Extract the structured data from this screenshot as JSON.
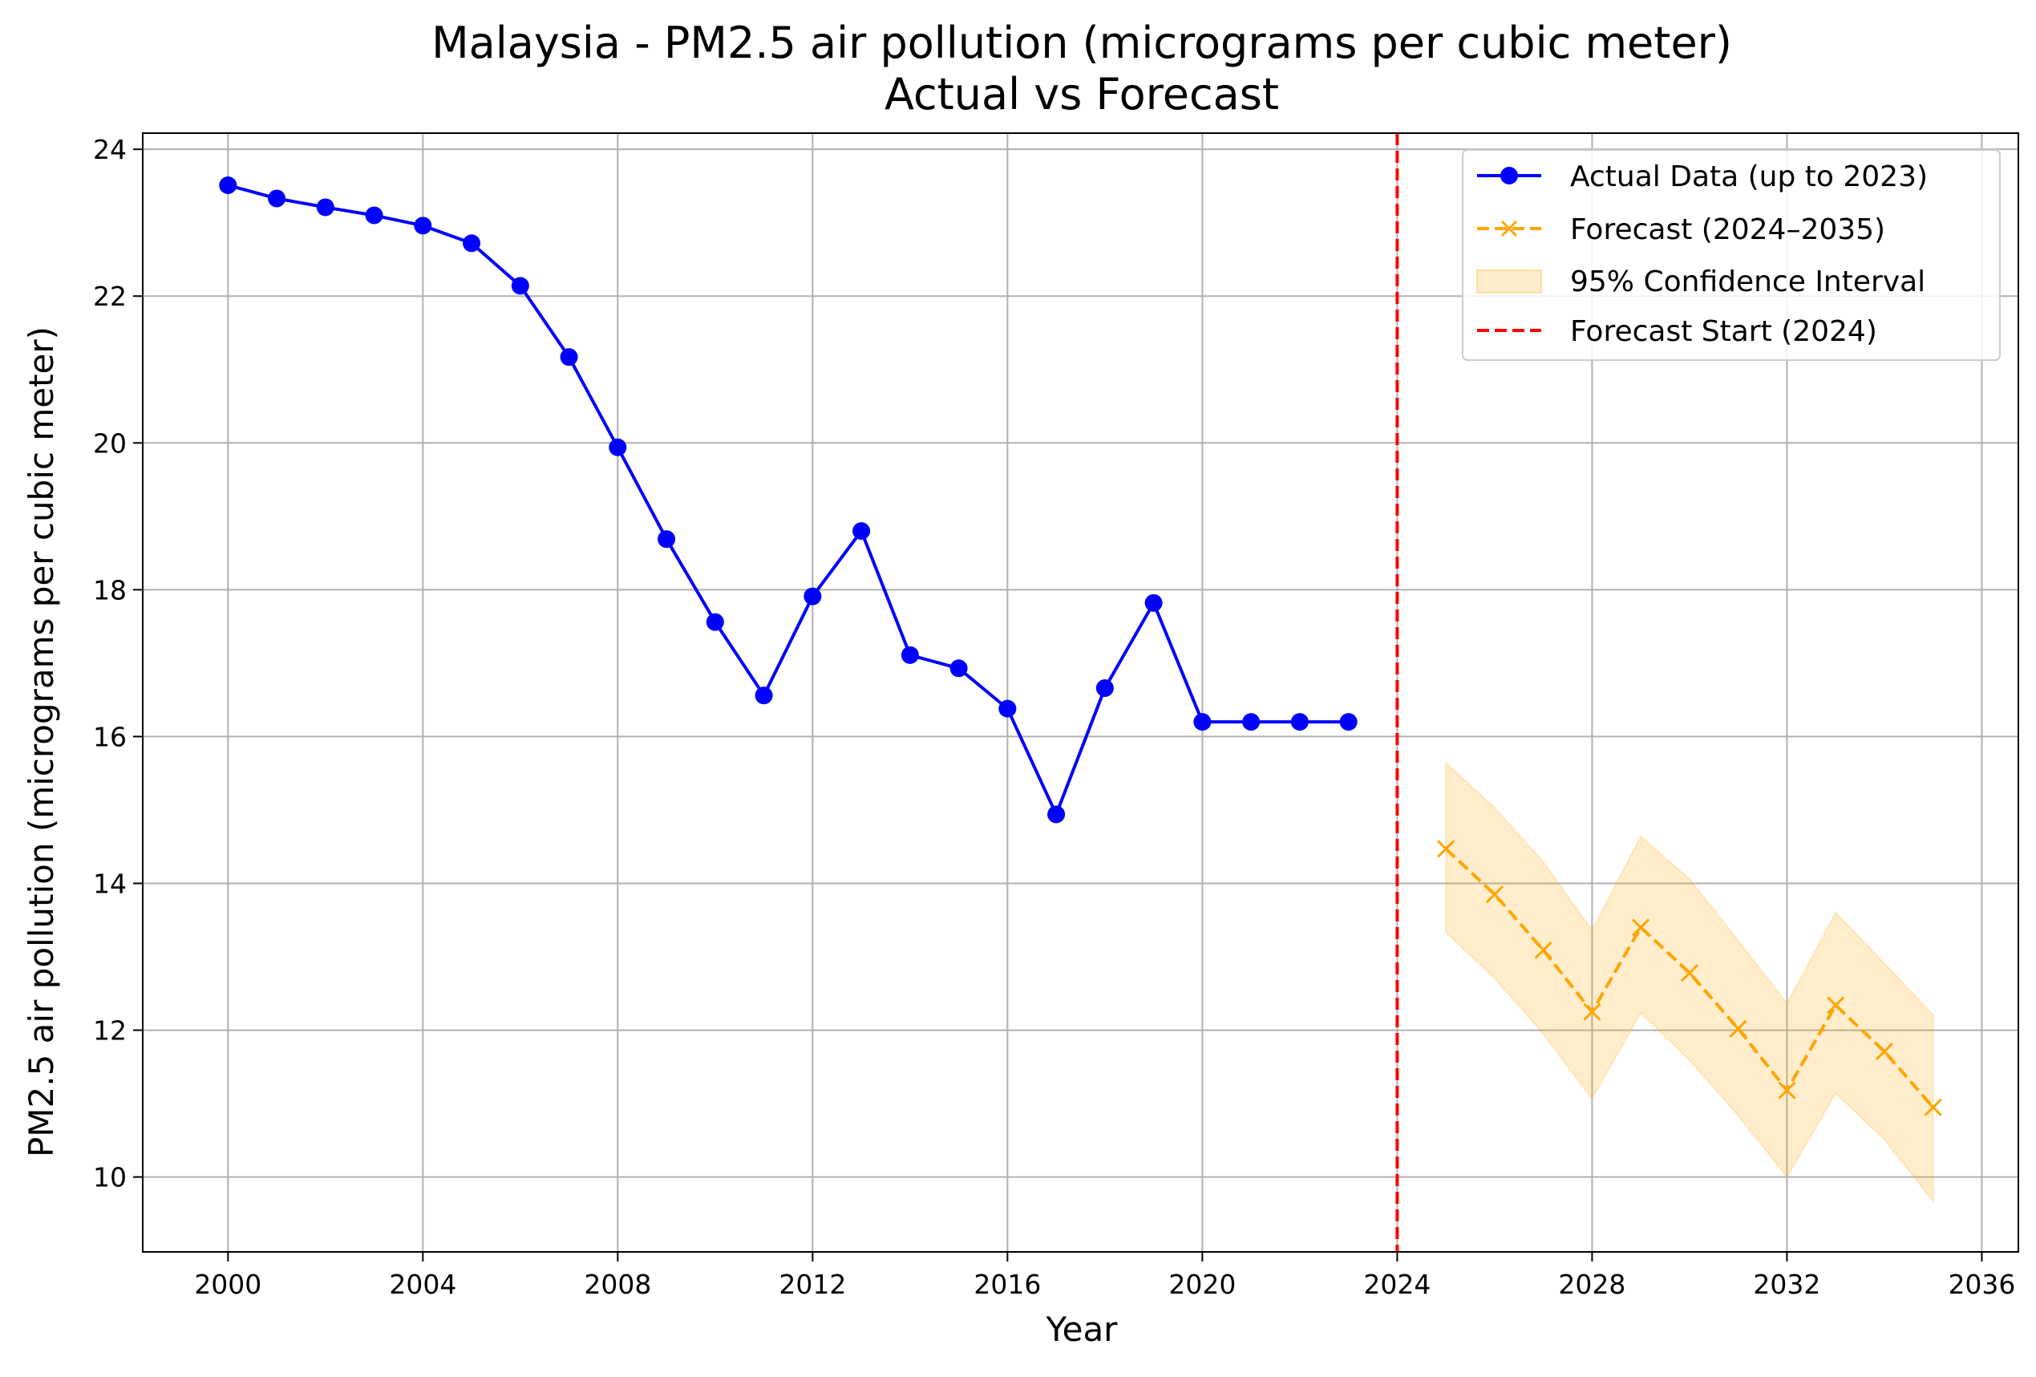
{
  "chart_data": {
    "type": "line",
    "title": "Malaysia - PM2.5 air pollution (micrograms per cubic meter)",
    "subtitle": "Actual vs Forecast",
    "xlabel": "Year",
    "ylabel": "PM2.5 air pollution (micrograms per cubic meter)",
    "xlim": [
      1998.25,
      2036.75
    ],
    "ylim": [
      8.98,
      24.22
    ],
    "xticks": [
      2000,
      2004,
      2008,
      2012,
      2016,
      2020,
      2024,
      2028,
      2032,
      2036
    ],
    "yticks": [
      10,
      12,
      14,
      16,
      18,
      20,
      22,
      24
    ],
    "grid": true,
    "legend_position": "top-right",
    "series": [
      {
        "name": "Actual Data (up to 2023)",
        "style": "solid line with circle markers",
        "color": "#0000ff",
        "x": [
          2000,
          2001,
          2002,
          2003,
          2004,
          2005,
          2006,
          2007,
          2008,
          2009,
          2010,
          2011,
          2012,
          2013,
          2014,
          2015,
          2016,
          2017,
          2018,
          2019,
          2020,
          2021,
          2022,
          2023
        ],
        "y": [
          23.51,
          23.33,
          23.21,
          23.1,
          22.96,
          22.72,
          22.14,
          21.17,
          19.94,
          18.69,
          17.56,
          16.56,
          17.91,
          18.8,
          17.11,
          16.93,
          16.38,
          14.94,
          16.66,
          17.82,
          16.2,
          16.2,
          16.2,
          16.2
        ]
      },
      {
        "name": "Forecast (2024–2035)",
        "style": "dashed line with x markers",
        "color": "#ffa500",
        "x": [
          2025,
          2026,
          2027,
          2028,
          2029,
          2030,
          2031,
          2032,
          2033,
          2034,
          2035
        ],
        "y": [
          14.47,
          13.85,
          13.09,
          12.25,
          13.4,
          12.78,
          12.02,
          11.18,
          12.34,
          11.71,
          10.95
        ]
      },
      {
        "name": "95% Confidence Interval",
        "style": "shaded band",
        "color": "#ffa500",
        "x": [
          2025,
          2026,
          2027,
          2028,
          2029,
          2030,
          2031,
          2032,
          2033,
          2034,
          2035
        ],
        "lower": [
          13.33,
          12.71,
          11.95,
          11.07,
          12.24,
          11.59,
          10.84,
          10.0,
          11.14,
          10.51,
          9.67
        ],
        "upper": [
          15.64,
          15.03,
          14.29,
          13.36,
          14.64,
          14.06,
          13.22,
          12.36,
          13.6,
          12.91,
          12.21
        ]
      },
      {
        "name": "Forecast Start (2024)",
        "style": "dashed vertical line",
        "color": "#ff0000",
        "x": [
          2024
        ]
      }
    ]
  }
}
